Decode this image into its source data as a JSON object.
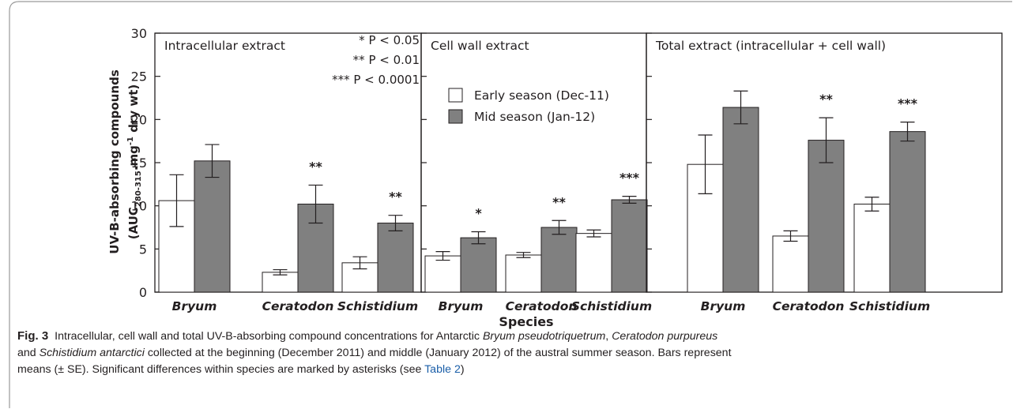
{
  "chart_data": [
    {
      "type": "bar",
      "title": "Intracellular extract",
      "categories": [
        "Bryum",
        "Ceratodon",
        "Schistidium"
      ],
      "series": [
        {
          "color": "#ffffff",
          "values": [
            10.6,
            2.3,
            3.4
          ],
          "errors": [
            3.0,
            0.3,
            0.7
          ]
        },
        {
          "color": "#808080",
          "values": [
            15.2,
            10.2,
            8.0
          ],
          "errors": [
            1.9,
            2.2,
            0.9
          ]
        }
      ],
      "annotations": [
        null,
        "**",
        "**"
      ],
      "significance_legend": [
        "* P < 0.05",
        "** P < 0.01",
        "*** P < 0.0001"
      ],
      "ylim": [
        0,
        30
      ],
      "yticks": [
        0,
        5,
        10,
        15,
        20,
        25,
        30
      ]
    },
    {
      "type": "bar",
      "title": "Cell wall extract",
      "categories": [
        "Bryum",
        "Ceratodon",
        "Schistidium"
      ],
      "series": [
        {
          "name": "Early season (Dec-11)",
          "color": "#ffffff",
          "values": [
            4.2,
            4.3,
            6.8
          ],
          "errors": [
            0.5,
            0.3,
            0.4
          ]
        },
        {
          "name": "Mid season (Jan-12)",
          "color": "#808080",
          "values": [
            6.3,
            7.5,
            10.7
          ],
          "errors": [
            0.7,
            0.8,
            0.4
          ]
        }
      ],
      "annotations": [
        "*",
        "**",
        "***"
      ],
      "ylim": [
        0,
        30
      ]
    },
    {
      "type": "bar",
      "title": "Total extract (intracellular + cell wall)",
      "categories": [
        "Bryum",
        "Ceratodon",
        "Schistidium"
      ],
      "series": [
        {
          "color": "#ffffff",
          "values": [
            14.8,
            6.5,
            10.2
          ],
          "errors": [
            3.4,
            0.6,
            0.8
          ]
        },
        {
          "color": "#808080",
          "values": [
            21.4,
            17.6,
            18.6
          ],
          "errors": [
            1.9,
            2.6,
            1.1
          ]
        }
      ],
      "annotations": [
        null,
        "**",
        "***"
      ],
      "ylim": [
        0,
        30
      ]
    }
  ],
  "y_label": {
    "line1": "UV-B-absorbing compounds",
    "line2": [
      "(AUC",
      "280-315",
      ".mg",
      "-1",
      " dry wt)"
    ]
  },
  "x_label": "Species",
  "caption": {
    "label": "Fig. 3",
    "segments": [
      "Intracellular, cell wall and total UV-B-absorbing compound concentrations for Antarctic ",
      "Bryum pseudotriquetrum",
      ", ",
      "Ceratodon purpureus",
      "and ",
      "Schistidium antarctici",
      " collected at the beginning (December 2011) and middle (January 2012) of the austral summer season. Bars represent",
      "means (± SE). Significant differences within species are marked by asterisks (see ",
      "Table 2",
      ")"
    ]
  }
}
